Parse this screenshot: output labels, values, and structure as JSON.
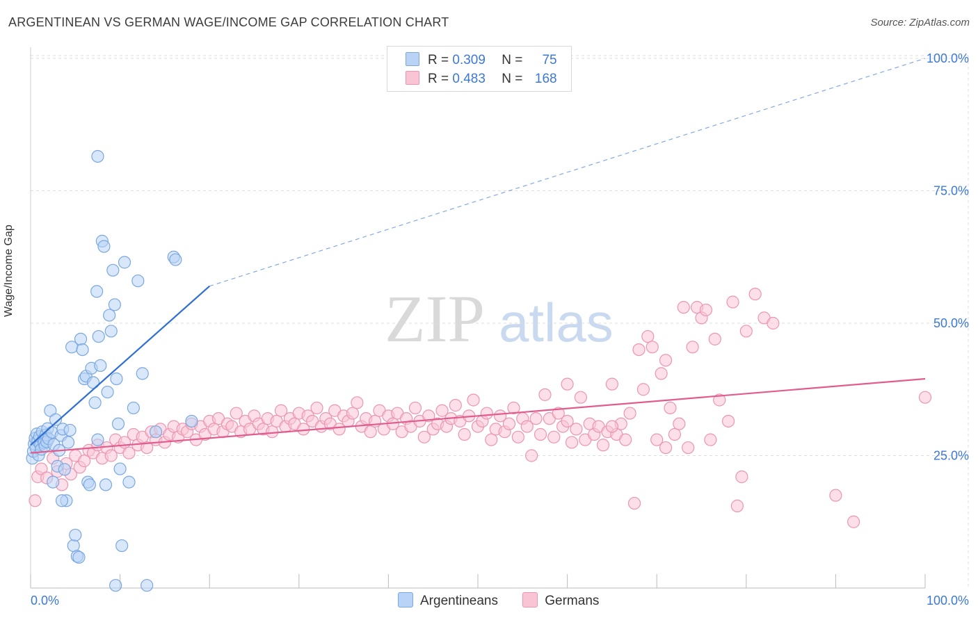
{
  "title": "ARGENTINEAN VS GERMAN WAGE/INCOME GAP CORRELATION CHART",
  "source": "Source: ZipAtlas.com",
  "watermark": {
    "zip": "ZIP",
    "atlas": "atlas"
  },
  "legend": {
    "rows": [
      {
        "r_label": "R =",
        "r_value": "0.309",
        "n_label": "N =",
        "n_value": "75"
      },
      {
        "r_label": "R =",
        "r_value": "0.483",
        "n_label": "N =",
        "n_value": "168"
      }
    ]
  },
  "colors": {
    "argentineans_fill": "#b8d3f5",
    "argentineans_stroke": "#7aa7e0",
    "argentineans_line": "#2f6fd1",
    "germans_fill": "#f9c5d5",
    "germans_stroke": "#ec95b0",
    "germans_line": "#e25b8d",
    "axis_label": "#3b78d8",
    "grid": "#dddddd"
  },
  "chart_data": {
    "type": "scatter",
    "title": "ARGENTINEAN VS GERMAN WAGE/INCOME GAP CORRELATION CHART",
    "xlabel": "",
    "ylabel": "Wage/Income Gap",
    "xlim": [
      0,
      100
    ],
    "ylim": [
      0,
      100
    ],
    "x_tick_labels": [
      "0.0%",
      "100.0%"
    ],
    "y_ticks": [
      25,
      50,
      75,
      100
    ],
    "y_tick_labels": [
      "25.0%",
      "50.0%",
      "75.0%",
      "100.0%"
    ],
    "grid": true,
    "legend_position": "bottom",
    "series": [
      {
        "name": "Argentineans",
        "r": 0.309,
        "n": 75,
        "trend": {
          "x": [
            0,
            20
          ],
          "y": [
            27,
            57
          ],
          "dashed_to": [
            100,
            100
          ]
        },
        "points": [
          [
            0.2,
            24.5
          ],
          [
            0.3,
            25.8
          ],
          [
            0.4,
            27.2
          ],
          [
            0.5,
            28.3
          ],
          [
            0.6,
            26.5
          ],
          [
            0.7,
            29.1
          ],
          [
            0.8,
            27.8
          ],
          [
            0.9,
            25.1
          ],
          [
            1.0,
            28.6
          ],
          [
            1.1,
            27.0
          ],
          [
            1.2,
            26.2
          ],
          [
            1.3,
            29.5
          ],
          [
            1.4,
            28.0
          ],
          [
            1.5,
            27.4
          ],
          [
            1.6,
            26.8
          ],
          [
            1.7,
            28.9
          ],
          [
            1.8,
            27.6
          ],
          [
            1.9,
            30.1
          ],
          [
            2.0,
            28.2
          ],
          [
            2.2,
            33.5
          ],
          [
            2.4,
            29.4
          ],
          [
            2.6,
            27.1
          ],
          [
            2.8,
            31.8
          ],
          [
            3.0,
            23.0
          ],
          [
            3.2,
            26.0
          ],
          [
            3.4,
            28.8
          ],
          [
            3.6,
            30.0
          ],
          [
            3.8,
            22.4
          ],
          [
            4.0,
            16.5
          ],
          [
            4.2,
            27.5
          ],
          [
            4.4,
            29.8
          ],
          [
            4.6,
            45.5
          ],
          [
            4.8,
            8.0
          ],
          [
            5.0,
            10.0
          ],
          [
            5.2,
            6.0
          ],
          [
            5.4,
            5.8
          ],
          [
            5.6,
            47.0
          ],
          [
            5.8,
            45.0
          ],
          [
            6.0,
            39.5
          ],
          [
            6.2,
            40.0
          ],
          [
            6.4,
            20.0
          ],
          [
            6.6,
            19.5
          ],
          [
            6.8,
            41.5
          ],
          [
            7.0,
            38.8
          ],
          [
            7.2,
            35.0
          ],
          [
            7.4,
            56.0
          ],
          [
            7.6,
            47.5
          ],
          [
            7.8,
            42.0
          ],
          [
            8.0,
            65.5
          ],
          [
            8.2,
            64.5
          ],
          [
            8.4,
            19.5
          ],
          [
            8.6,
            37.0
          ],
          [
            8.8,
            51.5
          ],
          [
            9.0,
            48.5
          ],
          [
            9.2,
            60.0
          ],
          [
            9.4,
            53.5
          ],
          [
            9.6,
            39.5
          ],
          [
            9.8,
            31.0
          ],
          [
            10.0,
            22.5
          ],
          [
            10.5,
            61.5
          ],
          [
            11.0,
            20.0
          ],
          [
            11.5,
            34.0
          ],
          [
            12.0,
            58.0
          ],
          [
            12.5,
            40.5
          ],
          [
            13.0,
            0.5
          ],
          [
            14.0,
            29.5
          ],
          [
            16.0,
            62.5
          ],
          [
            16.2,
            62.0
          ],
          [
            18.0,
            31.5
          ],
          [
            7.5,
            28.0
          ],
          [
            9.5,
            0.5
          ],
          [
            10.2,
            8.0
          ],
          [
            3.5,
            16.5
          ],
          [
            2.5,
            20.0
          ],
          [
            7.5,
            81.5
          ]
        ]
      },
      {
        "name": "Germans",
        "r": 0.483,
        "n": 168,
        "trend": {
          "x": [
            0,
            100
          ],
          "y": [
            25.5,
            39.5
          ]
        },
        "points": [
          [
            0.5,
            16.5
          ],
          [
            0.8,
            21.0
          ],
          [
            1.2,
            22.5
          ],
          [
            1.8,
            20.8
          ],
          [
            2.5,
            24.5
          ],
          [
            3.0,
            22.0
          ],
          [
            3.5,
            19.5
          ],
          [
            4.0,
            23.5
          ],
          [
            4.5,
            21.5
          ],
          [
            5.0,
            25.0
          ],
          [
            5.5,
            22.8
          ],
          [
            6.0,
            24.0
          ],
          [
            6.5,
            26.0
          ],
          [
            7.0,
            25.5
          ],
          [
            7.5,
            27.0
          ],
          [
            8.0,
            24.5
          ],
          [
            8.5,
            26.5
          ],
          [
            9.0,
            25.0
          ],
          [
            9.5,
            28.0
          ],
          [
            10.0,
            26.5
          ],
          [
            10.5,
            27.5
          ],
          [
            11.0,
            25.5
          ],
          [
            11.5,
            29.0
          ],
          [
            12.0,
            27.0
          ],
          [
            12.5,
            28.5
          ],
          [
            13.0,
            26.5
          ],
          [
            13.5,
            29.5
          ],
          [
            14.0,
            28.0
          ],
          [
            14.5,
            30.0
          ],
          [
            15.0,
            27.5
          ],
          [
            15.5,
            29.0
          ],
          [
            16.0,
            30.5
          ],
          [
            16.5,
            28.5
          ],
          [
            17.0,
            30.0
          ],
          [
            17.5,
            29.5
          ],
          [
            18.0,
            31.0
          ],
          [
            18.5,
            28.0
          ],
          [
            19.0,
            30.5
          ],
          [
            19.5,
            29.0
          ],
          [
            20.0,
            31.5
          ],
          [
            20.5,
            30.0
          ],
          [
            21.0,
            32.0
          ],
          [
            21.5,
            29.5
          ],
          [
            22.0,
            31.0
          ],
          [
            22.5,
            30.5
          ],
          [
            23.0,
            33.0
          ],
          [
            23.5,
            29.5
          ],
          [
            24.0,
            31.5
          ],
          [
            24.5,
            30.0
          ],
          [
            25.0,
            32.5
          ],
          [
            25.5,
            31.0
          ],
          [
            26.0,
            30.0
          ],
          [
            26.5,
            32.0
          ],
          [
            27.0,
            29.5
          ],
          [
            27.5,
            31.5
          ],
          [
            28.0,
            33.5
          ],
          [
            28.5,
            30.5
          ],
          [
            29.0,
            32.0
          ],
          [
            29.5,
            31.0
          ],
          [
            30.0,
            33.0
          ],
          [
            30.5,
            30.0
          ],
          [
            31.0,
            32.5
          ],
          [
            31.5,
            31.5
          ],
          [
            32.0,
            34.0
          ],
          [
            32.5,
            30.5
          ],
          [
            33.0,
            32.0
          ],
          [
            33.5,
            31.0
          ],
          [
            34.0,
            33.5
          ],
          [
            34.5,
            30.0
          ],
          [
            35.0,
            32.5
          ],
          [
            35.5,
            31.5
          ],
          [
            36.0,
            33.0
          ],
          [
            36.5,
            35.0
          ],
          [
            37.0,
            30.5
          ],
          [
            37.5,
            32.0
          ],
          [
            38.0,
            29.5
          ],
          [
            38.5,
            31.5
          ],
          [
            39.0,
            33.5
          ],
          [
            39.5,
            30.0
          ],
          [
            40.0,
            32.5
          ],
          [
            40.5,
            31.0
          ],
          [
            41.0,
            33.0
          ],
          [
            41.5,
            29.5
          ],
          [
            42.0,
            32.0
          ],
          [
            42.5,
            30.5
          ],
          [
            43.0,
            34.0
          ],
          [
            43.5,
            31.5
          ],
          [
            44.0,
            28.5
          ],
          [
            44.5,
            32.5
          ],
          [
            45.0,
            30.0
          ],
          [
            45.5,
            31.0
          ],
          [
            46.0,
            33.5
          ],
          [
            46.5,
            30.5
          ],
          [
            47.0,
            32.0
          ],
          [
            47.5,
            34.5
          ],
          [
            48.0,
            31.5
          ],
          [
            48.5,
            29.0
          ],
          [
            49.0,
            32.5
          ],
          [
            49.5,
            35.5
          ],
          [
            50.0,
            30.5
          ],
          [
            50.5,
            31.5
          ],
          [
            51.0,
            33.0
          ],
          [
            51.5,
            28.0
          ],
          [
            52.0,
            30.0
          ],
          [
            52.5,
            32.5
          ],
          [
            53.0,
            29.5
          ],
          [
            53.5,
            31.0
          ],
          [
            54.0,
            34.0
          ],
          [
            54.5,
            28.5
          ],
          [
            55.0,
            32.0
          ],
          [
            55.5,
            30.5
          ],
          [
            56.0,
            25.0
          ],
          [
            56.5,
            32.0
          ],
          [
            57.0,
            29.0
          ],
          [
            57.5,
            36.5
          ],
          [
            58.0,
            32.0
          ],
          [
            58.5,
            28.5
          ],
          [
            59.0,
            33.0
          ],
          [
            59.5,
            30.5
          ],
          [
            60.0,
            31.5
          ],
          [
            60.5,
            27.5
          ],
          [
            61.0,
            30.0
          ],
          [
            61.5,
            36.0
          ],
          [
            62.0,
            28.0
          ],
          [
            62.5,
            31.0
          ],
          [
            63.0,
            29.0
          ],
          [
            63.5,
            30.5
          ],
          [
            64.0,
            27.0
          ],
          [
            64.5,
            29.5
          ],
          [
            65.0,
            38.5
          ],
          [
            65.5,
            29.0
          ],
          [
            66.0,
            31.0
          ],
          [
            66.5,
            28.0
          ],
          [
            67.0,
            33.0
          ],
          [
            67.5,
            16.0
          ],
          [
            68.0,
            45.0
          ],
          [
            68.5,
            37.5
          ],
          [
            69.0,
            47.5
          ],
          [
            69.5,
            45.5
          ],
          [
            70.0,
            28.0
          ],
          [
            70.5,
            40.5
          ],
          [
            71.0,
            43.0
          ],
          [
            71.5,
            34.0
          ],
          [
            72.0,
            29.0
          ],
          [
            72.5,
            31.0
          ],
          [
            73.0,
            53.0
          ],
          [
            73.5,
            26.5
          ],
          [
            74.0,
            45.5
          ],
          [
            74.5,
            53.0
          ],
          [
            75.0,
            51.0
          ],
          [
            75.5,
            52.5
          ],
          [
            76.0,
            28.0
          ],
          [
            76.5,
            47.0
          ],
          [
            77.0,
            35.5
          ],
          [
            78.0,
            31.5
          ],
          [
            78.5,
            54.0
          ],
          [
            79.0,
            15.5
          ],
          [
            79.5,
            21.0
          ],
          [
            80.0,
            48.5
          ],
          [
            81.0,
            55.5
          ],
          [
            82.0,
            51.0
          ],
          [
            83.0,
            50.0
          ],
          [
            90.0,
            17.5
          ],
          [
            92.0,
            12.5
          ],
          [
            100.0,
            36.0
          ],
          [
            60.0,
            38.5
          ],
          [
            71.0,
            26.5
          ],
          [
            65.0,
            30.5
          ]
        ]
      }
    ]
  }
}
